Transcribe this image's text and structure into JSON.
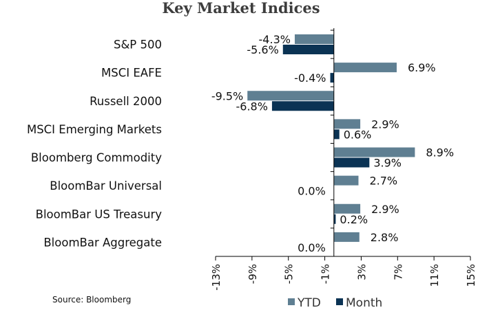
{
  "chart_data": {
    "type": "bar",
    "orientation": "horizontal",
    "title": "Key Market Indices",
    "categories": [
      "S&P 500",
      "MSCI EAFE",
      "Russell 2000",
      "MSCI Emerging Markets",
      "Bloomberg Commodity",
      "BloomBar Universal",
      "BloomBar US Treasury",
      "BloomBar Aggregate"
    ],
    "series": [
      {
        "name": "YTD",
        "color": "#5f7f92",
        "values": [
          -4.3,
          6.9,
          -9.5,
          2.9,
          8.9,
          2.7,
          2.9,
          2.8
        ],
        "labels": [
          "-4.3%",
          "6.9%",
          "-9.5%",
          "2.9%",
          "8.9%",
          "2.7%",
          "2.9%",
          "2.8%"
        ]
      },
      {
        "name": "Month",
        "color": "#0b3354",
        "values": [
          -5.6,
          -0.4,
          -6.8,
          0.6,
          3.9,
          0.0,
          0.2,
          0.0
        ],
        "labels": [
          "-5.6%",
          "-0.4%",
          "-6.8%",
          "0.6%",
          "3.9%",
          "0.0%",
          "0.2%",
          "0.0%"
        ]
      }
    ],
    "xlim": [
      -13,
      15
    ],
    "xticks": [
      -13,
      -9,
      -5,
      -1,
      3,
      7,
      11,
      15
    ],
    "xtick_labels": [
      "-13%",
      "-9%",
      "-5%",
      "-1%",
      "3%",
      "7%",
      "11%",
      "15%"
    ],
    "legend_placement": "bottom",
    "grid": false,
    "source": "Source: Bloomberg"
  }
}
